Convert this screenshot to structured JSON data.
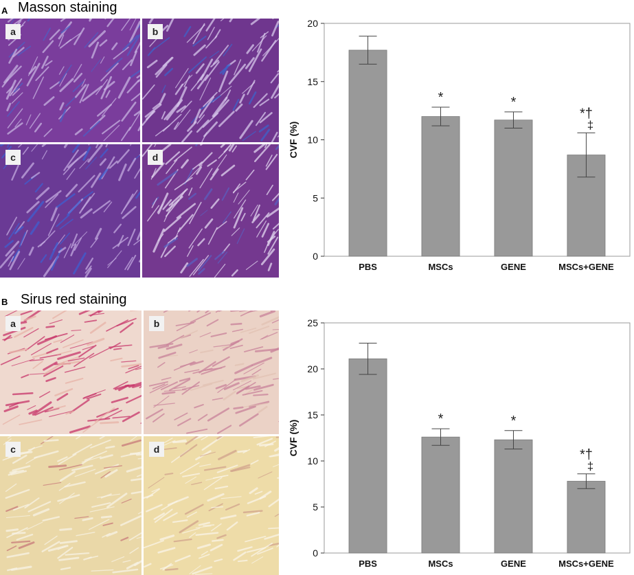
{
  "panels": [
    {
      "letter": "A",
      "title": "Masson staining",
      "tiles": [
        {
          "label": "a",
          "base": "#7a3d9c",
          "stroke": "#c7b3e0",
          "accent": "#4d5fc4"
        },
        {
          "label": "b",
          "base": "#6f368e",
          "stroke": "#d6c6ea",
          "accent": "#3e63c9"
        },
        {
          "label": "c",
          "base": "#6a3a95",
          "stroke": "#c2a9df",
          "accent": "#3f5ed0"
        },
        {
          "label": "d",
          "base": "#74388f",
          "stroke": "#e2d6ef",
          "accent": "#5a5fc0"
        }
      ]
    },
    {
      "letter": "B",
      "title": "Sirus red staining",
      "tiles": [
        {
          "label": "a",
          "base": "#efd9cf",
          "stroke": "#c8356a",
          "accent": "#e7b3a8"
        },
        {
          "label": "b",
          "base": "#ebd2c6",
          "stroke": "#c9829a",
          "accent": "#e2c2b4"
        },
        {
          "label": "c",
          "base": "#ead8a8",
          "stroke": "#f8f3e6",
          "accent": "#c87a7a"
        },
        {
          "label": "d",
          "base": "#eedca8",
          "stroke": "#faf5e8",
          "accent": "#d1a38c"
        }
      ]
    }
  ],
  "chart_data": [
    {
      "type": "bar",
      "categories": [
        "PBS",
        "MSCs",
        "GENE",
        "MSCs+GENE"
      ],
      "values": [
        17.7,
        12.0,
        11.7,
        8.7
      ],
      "errors": [
        1.2,
        0.8,
        0.7,
        1.9
      ],
      "annotations": [
        "",
        "*",
        "*",
        "*†‡"
      ],
      "ylabel": "CVF (%)",
      "ylim": [
        0,
        20
      ],
      "yticks": [
        0,
        5,
        10,
        15,
        20
      ],
      "bar_color": "#999999"
    },
    {
      "type": "bar",
      "categories": [
        "PBS",
        "MSCs",
        "GENE",
        "MSCs+GENE"
      ],
      "values": [
        21.1,
        12.6,
        12.3,
        7.8
      ],
      "errors": [
        1.7,
        0.9,
        1.0,
        0.8
      ],
      "annotations": [
        "",
        "*",
        "*",
        "*†‡"
      ],
      "ylabel": "CVF (%)",
      "ylim": [
        0,
        25
      ],
      "yticks": [
        0,
        5,
        10,
        15,
        20,
        25
      ],
      "bar_color": "#999999"
    }
  ]
}
